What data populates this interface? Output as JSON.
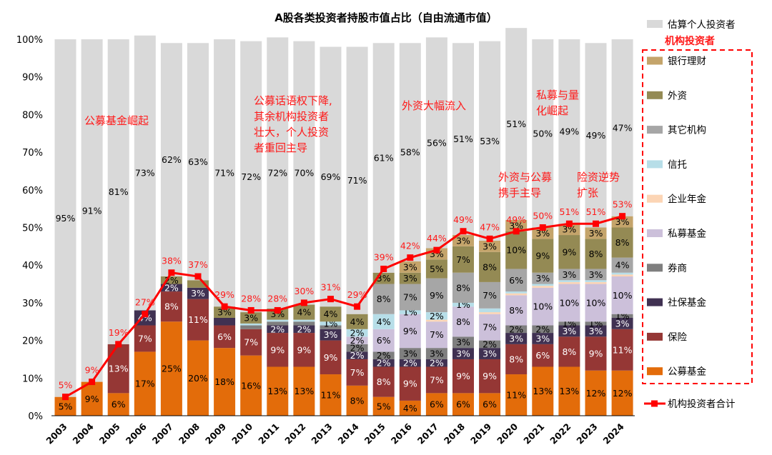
{
  "chart_data": {
    "type": "bar",
    "stacked": true,
    "title": "A股各类投资者持股市值占比（自由流通市值）",
    "categories": [
      "2003",
      "2004",
      "2005",
      "2006",
      "2007",
      "2008",
      "2009",
      "2010",
      "2011",
      "2012",
      "2013",
      "2014",
      "2015",
      "2016",
      "2017",
      "2018",
      "2019",
      "2020",
      "2021",
      "2022",
      "2023",
      "2024"
    ],
    "ylim": [
      0,
      100
    ],
    "yticks": [
      "0%",
      "10%",
      "20%",
      "30%",
      "40%",
      "50%",
      "60%",
      "70%",
      "80%",
      "90%",
      "100%"
    ],
    "series": [
      {
        "name": "公募基金",
        "color": "#e36c0a",
        "label_color": "#000000",
        "values": [
          5,
          9,
          6,
          17,
          25,
          20,
          18,
          16,
          13,
          13,
          11,
          8,
          5,
          4,
          6,
          6,
          6,
          11,
          13,
          13,
          12,
          12
        ],
        "labels": [
          "5%",
          "9%",
          "6%",
          "17%",
          "25%",
          "20%",
          "18%",
          "16%",
          "13%",
          "13%",
          "11%",
          "8%",
          "5%",
          "4%",
          "6%",
          "6%",
          "6%",
          "11%",
          "13%",
          "13%",
          "12%",
          "12%"
        ]
      },
      {
        "name": "保险",
        "color": "#953735",
        "label_color": "#ffffff",
        "values": [
          0,
          0,
          13,
          7,
          8,
          11,
          6,
          7,
          9,
          9,
          9,
          7,
          8,
          9,
          7,
          9,
          9,
          8,
          6,
          8,
          9,
          11
        ],
        "labels": [
          "",
          "",
          "13%",
          "7%",
          "8%",
          "11%",
          "6%",
          "7%",
          "9%",
          "9%",
          "9%",
          "7%",
          "8%",
          "9%",
          "7%",
          "9%",
          "9%",
          "8%",
          "6%",
          "8%",
          "9%",
          "11%"
        ]
      },
      {
        "name": "社保基金",
        "color": "#403152",
        "label_color": "#ffffff",
        "values": [
          0,
          0,
          0,
          4,
          2,
          3,
          2,
          0,
          2,
          2,
          3,
          2,
          2,
          2,
          2,
          3,
          3,
          3,
          3,
          3,
          3,
          3
        ],
        "labels": [
          "",
          "",
          "",
          "4%",
          "2%",
          "3%",
          "",
          "",
          "2%",
          "2%",
          "3%",
          "2%",
          "2%",
          "2%",
          "2%",
          "3%",
          "3%",
          "3%",
          "3%",
          "3%",
          "3%",
          "3%"
        ]
      },
      {
        "name": "券商",
        "color": "#7f7f7f",
        "label_color": "#000000",
        "values": [
          0,
          0,
          0,
          0,
          0,
          0,
          0,
          1,
          1,
          1,
          1,
          2,
          2,
          3,
          3,
          3,
          2,
          2,
          2,
          1,
          1,
          1
        ],
        "labels": [
          "",
          "",
          "",
          "",
          "",
          "",
          "",
          "",
          "",
          "",
          "",
          "2%",
          "2%",
          "3%",
          "3%",
          "3%",
          "2%",
          "2%",
          "2%",
          "1%",
          "1%",
          "1%"
        ]
      },
      {
        "name": "私募基金",
        "color": "#ccc0da",
        "label_color": "#000000",
        "values": [
          0,
          0,
          0,
          0,
          0,
          0,
          0,
          0,
          0,
          0,
          0,
          2,
          6,
          9,
          7,
          8,
          7,
          8,
          10,
          10,
          10,
          10
        ],
        "labels": [
          "",
          "",
          "",
          "",
          "",
          "",
          "",
          "",
          "",
          "",
          "",
          "2%",
          "6%",
          "9%",
          "7%",
          "8%",
          "7%",
          "8%",
          "10%",
          "10%",
          "10%",
          "10%"
        ]
      },
      {
        "name": "企业年金",
        "color": "#fcd5b5",
        "label_color": "#000000",
        "values": [
          0,
          0,
          0,
          0,
          0,
          0,
          0,
          0,
          0,
          0,
          0,
          0,
          0,
          0,
          0.5,
          0,
          0.5,
          0.5,
          0.5,
          0.5,
          0.5,
          0.5
        ],
        "labels": [
          "",
          "",
          "",
          "",
          "",
          "",
          "",
          "",
          "",
          "",
          "",
          "",
          "",
          "",
          "",
          "",
          "",
          "",
          "",
          "",
          "",
          ""
        ]
      },
      {
        "name": "信托",
        "color": "#b7dee8",
        "label_color": "#000000",
        "values": [
          0,
          0,
          0,
          0,
          0,
          0,
          0,
          0.5,
          0.5,
          0.5,
          1,
          2,
          4,
          1,
          2,
          1,
          1,
          0.5,
          0.5,
          0.5,
          0.5,
          0.5
        ],
        "labels": [
          "",
          "",
          "",
          "",
          "",
          "",
          "",
          "",
          "",
          "",
          "1%",
          "2%",
          "4%",
          "1%",
          "2%",
          "1%",
          "",
          "",
          "",
          "",
          "",
          ""
        ]
      },
      {
        "name": "其它机构",
        "color": "#a6a6a6",
        "label_color": "#000000",
        "values": [
          0,
          0,
          0,
          0,
          0,
          0,
          0,
          0,
          0,
          0,
          0,
          0,
          8,
          7,
          9,
          8,
          7,
          6,
          3,
          3,
          3,
          4
        ],
        "labels": [
          "",
          "",
          "",
          "",
          "",
          "",
          "",
          "",
          "",
          "",
          "",
          "",
          "8%",
          "7%",
          "9%",
          "8%",
          "7%",
          "6%",
          "3%",
          "3%",
          "3%",
          "4%"
        ]
      },
      {
        "name": "外资",
        "color": "#948a54",
        "label_color": "#000000",
        "values": [
          0,
          0,
          0,
          0,
          2,
          2,
          3,
          3,
          3,
          4,
          4,
          4,
          3,
          3,
          5,
          7,
          8,
          10,
          9,
          9,
          8,
          8
        ],
        "labels": [
          "",
          "",
          "",
          "",
          "2%",
          "",
          "3%",
          "3%",
          "3%",
          "4%",
          "4%",
          "4%",
          "3%",
          "3%",
          "5%",
          "7%",
          "8%",
          "10%",
          "9%",
          "9%",
          "8%",
          "8%"
        ]
      },
      {
        "name": "银行理财",
        "color": "#c4a46b",
        "label_color": "#000000",
        "values": [
          0,
          0,
          0,
          0,
          0,
          0,
          0,
          0,
          0,
          0,
          0,
          0,
          0,
          3,
          3,
          3,
          3,
          3,
          3,
          3,
          3,
          3
        ],
        "labels": [
          "",
          "",
          "",
          "",
          "",
          "",
          "",
          "",
          "",
          "",
          "",
          "",
          "",
          "3%",
          "3%",
          "3%",
          "3%",
          "3%",
          "3%",
          "3%",
          "3%",
          "3%"
        ]
      },
      {
        "name": "估算个人投资者",
        "color": "#d9d9d9",
        "label_color": "#000000",
        "values": [
          95,
          91,
          81,
          73,
          62,
          63,
          71,
          72,
          72,
          70,
          69,
          71,
          61,
          58,
          56,
          51,
          53,
          51,
          50,
          49,
          49,
          47
        ],
        "labels": [
          "95%",
          "91%",
          "81%",
          "73%",
          "62%",
          "63%",
          "71%",
          "72%",
          "72%",
          "70%",
          "69%",
          "71%",
          "61%",
          "58%",
          "56%",
          "51%",
          "53%",
          "51%",
          "50%",
          "49%",
          "49%",
          "47%"
        ]
      }
    ],
    "line": {
      "name": "机构投资者合计",
      "color": "#ff0000",
      "values": [
        5,
        9,
        19,
        27,
        38,
        37,
        29,
        28,
        28,
        30,
        31,
        29,
        39,
        42,
        44,
        49,
        47,
        49,
        50,
        51,
        51,
        53
      ],
      "labels": [
        "5%",
        "9%",
        "19%",
        "27%",
        "38%",
        "37%",
        "29%",
        "28%",
        "28%",
        "30%",
        "31%",
        "29%",
        "39%",
        "42%",
        "44%",
        "49%",
        "47%",
        "49%",
        "50%",
        "51%",
        "51%",
        "53%"
      ]
    },
    "legend": {
      "position": "right",
      "group_title": "机构投资者",
      "items": [
        "估算个人投资者",
        "银行理财",
        "外资",
        "其它机构",
        "信托",
        "企业年金",
        "私募基金",
        "券商",
        "社保基金",
        "保险",
        "公募基金",
        "机构投资者合计"
      ]
    },
    "annotations": [
      {
        "lines": [
          "公募基金崛起"
        ]
      },
      {
        "lines": [
          "公募话语权下降,",
          "其余机构投资者",
          "壮大，个人投资",
          "者重回主导"
        ]
      },
      {
        "lines": [
          "外资大幅流入"
        ]
      },
      {
        "lines": [
          "私募与量",
          "化崛起"
        ]
      },
      {
        "lines": [
          "外资与公募",
          "携手主导"
        ]
      },
      {
        "lines": [
          "险资逆势",
          "扩张"
        ]
      }
    ]
  }
}
